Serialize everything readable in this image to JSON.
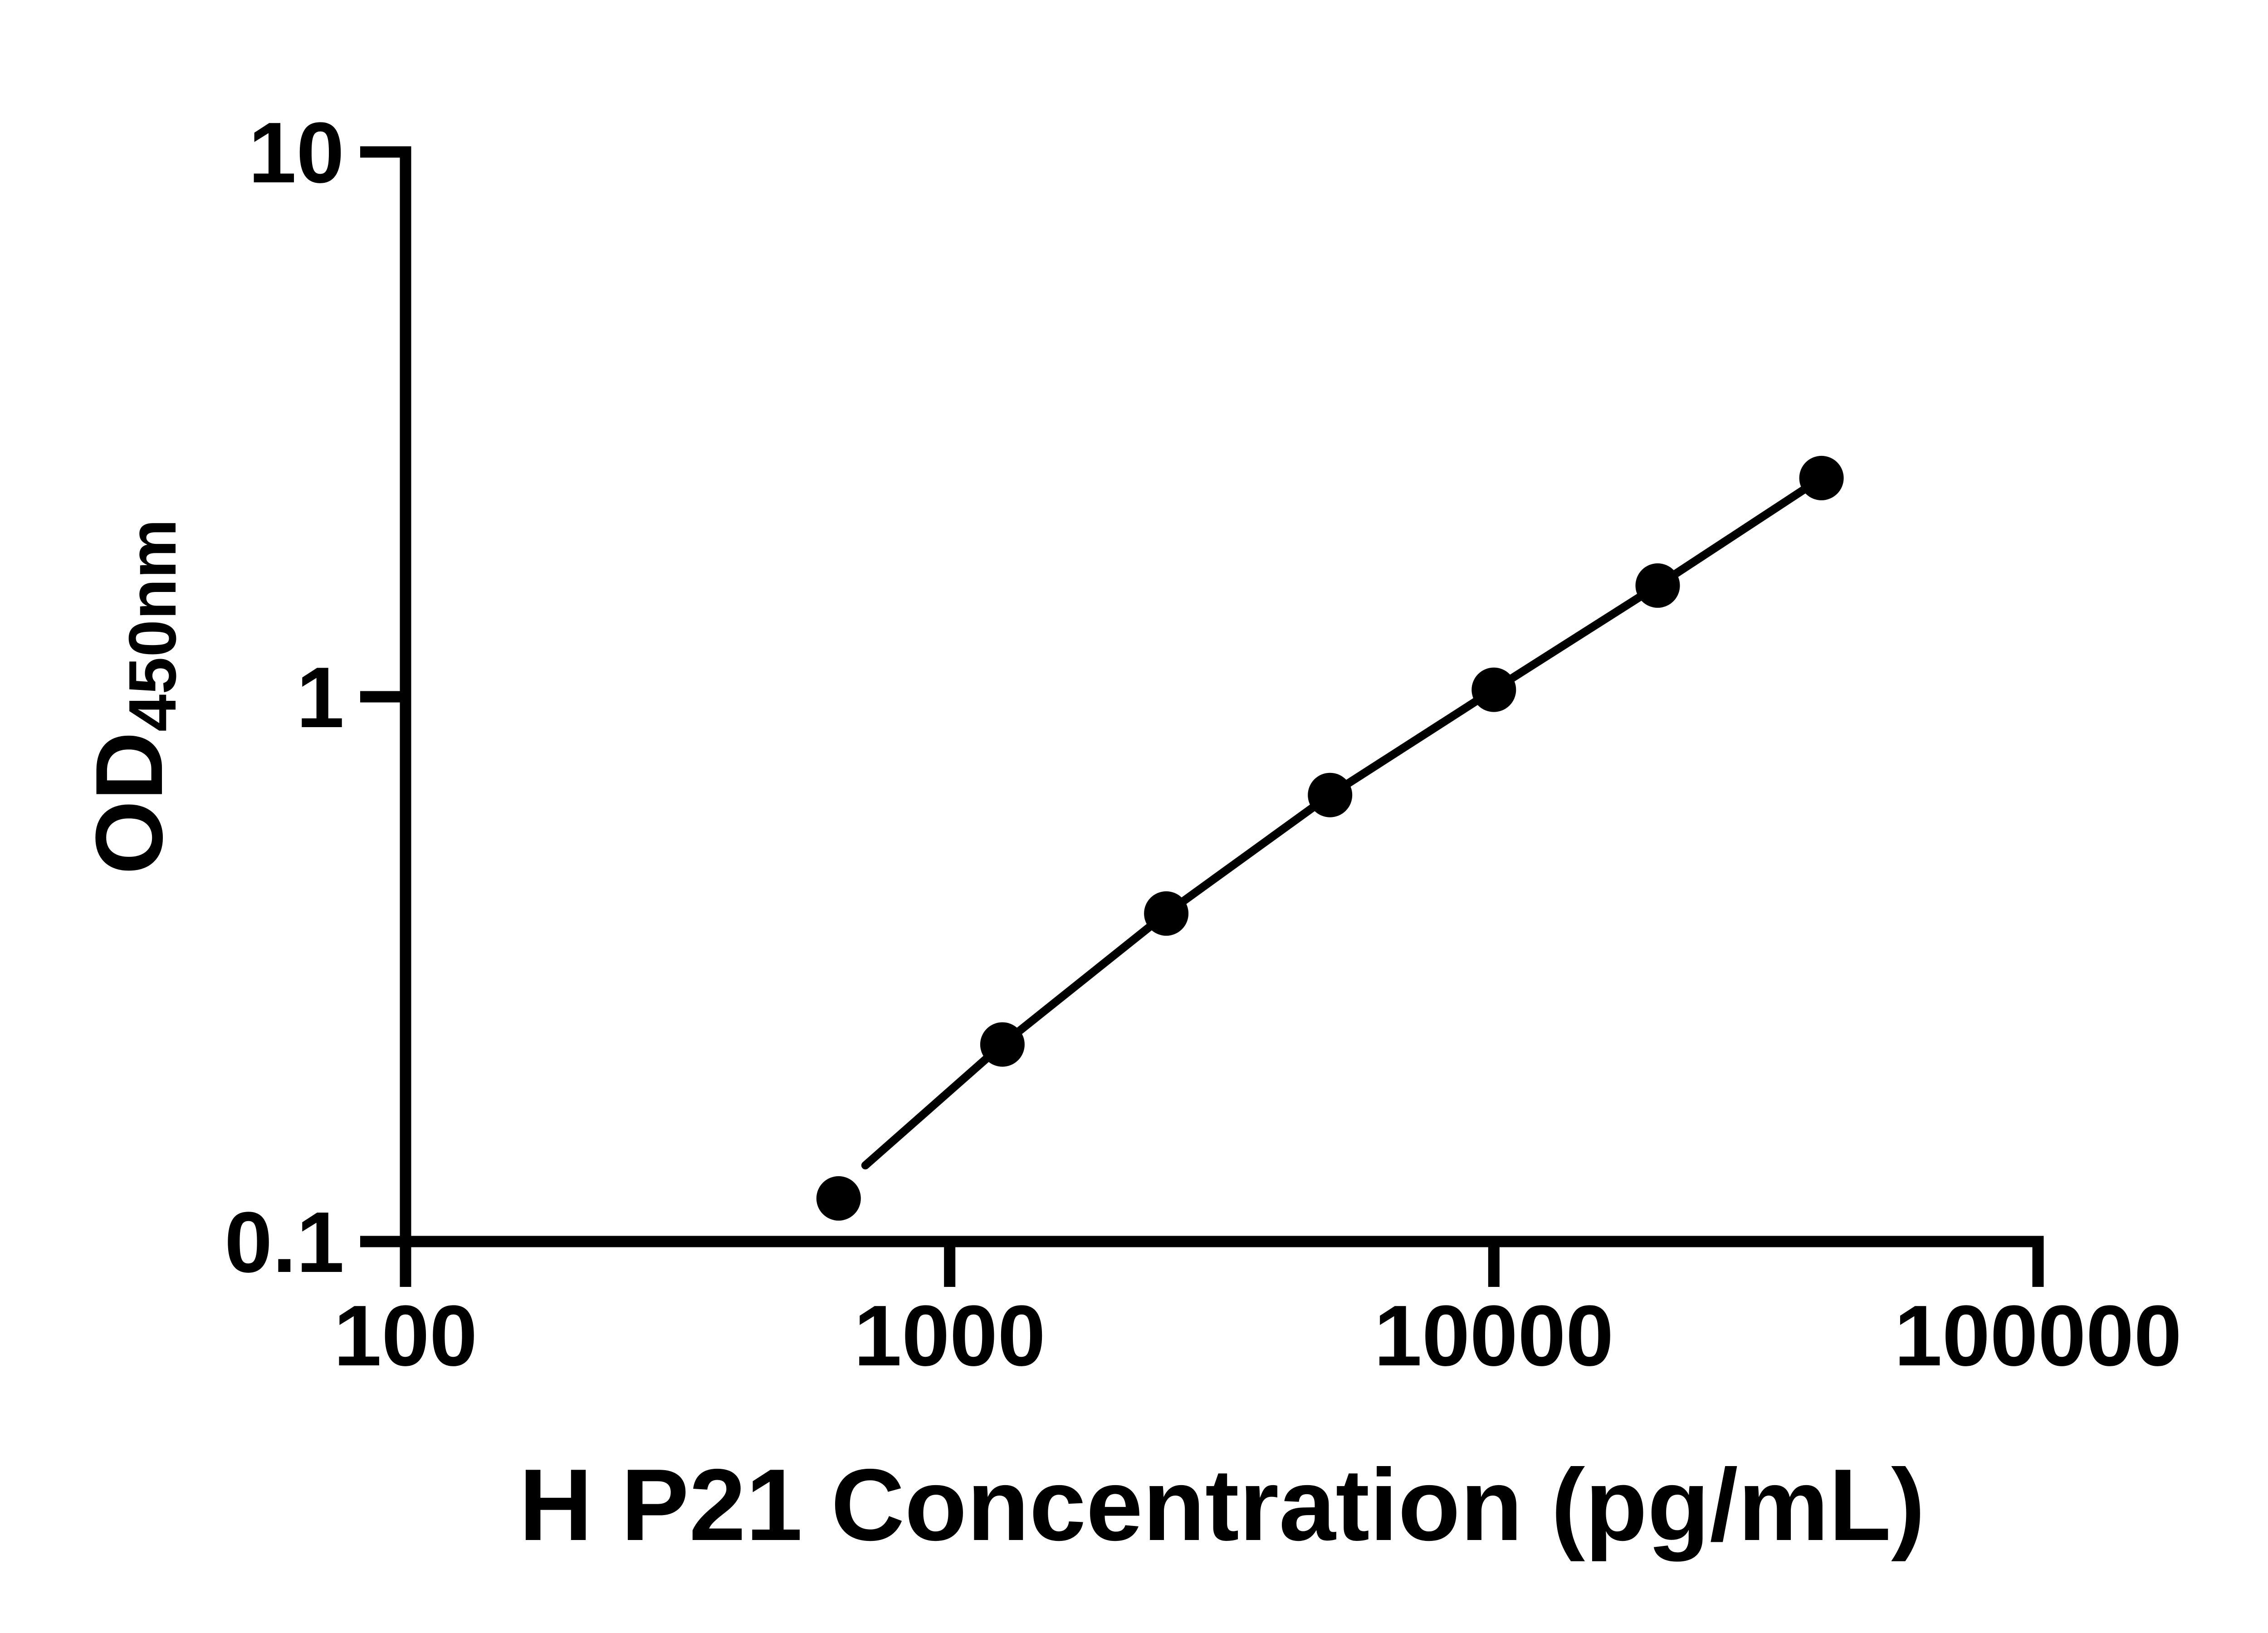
{
  "figure": {
    "background": "#ffffff",
    "foreground": "#000000"
  },
  "chart_data": {
    "type": "scatter",
    "title": "",
    "xlabel": "H P21 Concentration (pg/mL)",
    "ylabel": "OD",
    "ylabel_subscript": "450nm",
    "x_scale": "log",
    "y_scale": "log",
    "xlim": [
      100,
      100000
    ],
    "ylim": [
      0.1,
      10
    ],
    "grid": false,
    "legend": "none",
    "marker_style": "filled-circle",
    "marker_color": "#000000",
    "line_color": "#000000",
    "x_ticks": [
      {
        "value": 100,
        "label": "100"
      },
      {
        "value": 1000,
        "label": "1000"
      },
      {
        "value": 10000,
        "label": "10000"
      },
      {
        "value": 100000,
        "label": "100000"
      }
    ],
    "y_ticks": [
      {
        "value": 10,
        "label": "10"
      },
      {
        "value": 1,
        "label": "1"
      },
      {
        "value": 0.1,
        "label": "0.1"
      }
    ],
    "points": [
      {
        "x": 625,
        "y": 0.12
      },
      {
        "x": 1250,
        "y": 0.23
      },
      {
        "x": 2500,
        "y": 0.4
      },
      {
        "x": 5000,
        "y": 0.66
      },
      {
        "x": 10000,
        "y": 1.03
      },
      {
        "x": 20000,
        "y": 1.6
      },
      {
        "x": 40000,
        "y": 2.52
      }
    ],
    "trend_line": [
      {
        "x": 700,
        "y": 0.138
      },
      {
        "x": 1250,
        "y": 0.23
      },
      {
        "x": 2500,
        "y": 0.4
      },
      {
        "x": 5000,
        "y": 0.66
      },
      {
        "x": 10000,
        "y": 1.03
      },
      {
        "x": 20000,
        "y": 1.6
      },
      {
        "x": 40000,
        "y": 2.52
      }
    ]
  }
}
